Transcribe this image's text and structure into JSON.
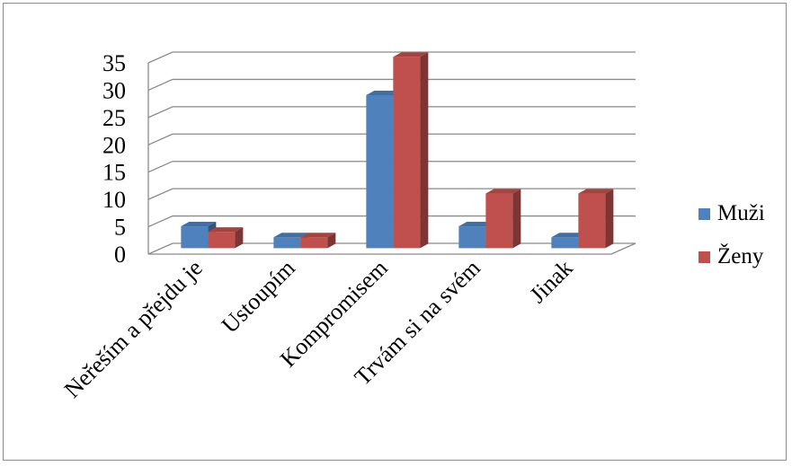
{
  "chart_data": {
    "type": "bar",
    "style": "3d-clustered-column",
    "categories": [
      "Neřeším a přejdu je",
      "Ustoupím",
      "Kompromisem",
      "Trvám si na svém",
      "Jinak"
    ],
    "series": [
      {
        "name": "Muži",
        "color": "#4f81bd",
        "values": [
          4,
          2,
          28,
          4,
          2
        ]
      },
      {
        "name": "Ženy",
        "color": "#c0504d",
        "values": [
          3,
          2,
          35,
          10,
          10
        ]
      }
    ],
    "yticks": [
      "0",
      "5",
      "10",
      "15",
      "20",
      "25",
      "30",
      "35"
    ],
    "ylim": [
      0,
      35
    ],
    "grid": true,
    "legend": "right"
  }
}
